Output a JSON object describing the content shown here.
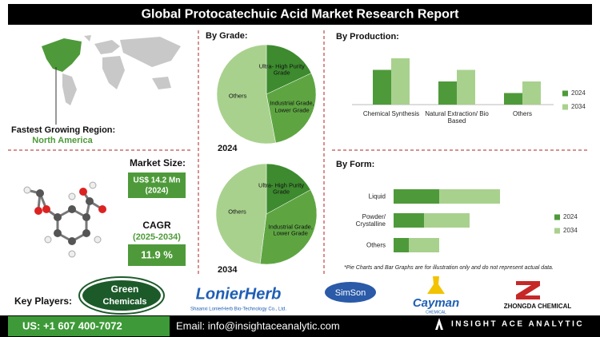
{
  "header": {
    "title": "Global Protocatechuic Acid Market Research Report"
  },
  "region": {
    "label": "Fastest Growing Region:",
    "value": "North America"
  },
  "market_size": {
    "label": "Market Size:",
    "value": "US$ 14.2 Mn",
    "year": "(2024)"
  },
  "cagr": {
    "label": "CAGR",
    "period": "(2025-2034)",
    "value": "11.9 %"
  },
  "grade_heading": "By Grade:",
  "chart_data": [
    {
      "type": "pie",
      "title": "2024",
      "categories": [
        "Ultra- High Purity Grade",
        "Industrial Grade, Lower Grade",
        "Others"
      ],
      "values": [
        18,
        29,
        53
      ],
      "colors": [
        "#3d8a2f",
        "#5ea542",
        "#a9d18e"
      ]
    },
    {
      "type": "pie",
      "title": "2034",
      "categories": [
        "Ultra- High Purity Grade",
        "Industrial Grade, Lower Grade",
        "Others"
      ],
      "values": [
        17,
        35,
        48
      ],
      "colors": [
        "#3d8a2f",
        "#5ea542",
        "#a9d18e"
      ]
    },
    {
      "type": "bar",
      "title": "By Production:",
      "categories": [
        "Chemical Synthesis",
        "Natural Extraction/ Bio Based",
        "Others"
      ],
      "series": [
        {
          "name": "2024",
          "color": "#4e9a3a",
          "values": [
            3,
            2,
            1
          ]
        },
        {
          "name": "2034",
          "color": "#a9d18e",
          "values": [
            4,
            3,
            2
          ]
        }
      ]
    },
    {
      "type": "bar",
      "horizontal": true,
      "stacked": true,
      "title": "By Form:",
      "categories": [
        "Liquid",
        "Powder/ Crystalline",
        "Others"
      ],
      "series": [
        {
          "name": "2024",
          "color": "#4e9a3a",
          "values": [
            3,
            2,
            1
          ]
        },
        {
          "name": "2034",
          "color": "#a9d18e",
          "values": [
            4,
            3,
            2
          ]
        }
      ]
    }
  ],
  "footnote": "*Pie Charts and Bar Graphs are for illustration only and do not represent actual data.",
  "key_players": {
    "label": "Key Players:",
    "logos": [
      "Green",
      "Chemicals",
      "LonierHerb",
      "Shaanxi LonierHerb Bio-Technology Co., Ltd.",
      "SimSon",
      "Cayman",
      "CHEMICAL",
      "ZHONGDA CHEMICAL"
    ]
  },
  "footer": {
    "phone": "US: +1 607 400-7072",
    "email": "Email: info@insightaceanalytic.com",
    "brand": "INSIGHT ACE ANALYTIC"
  }
}
